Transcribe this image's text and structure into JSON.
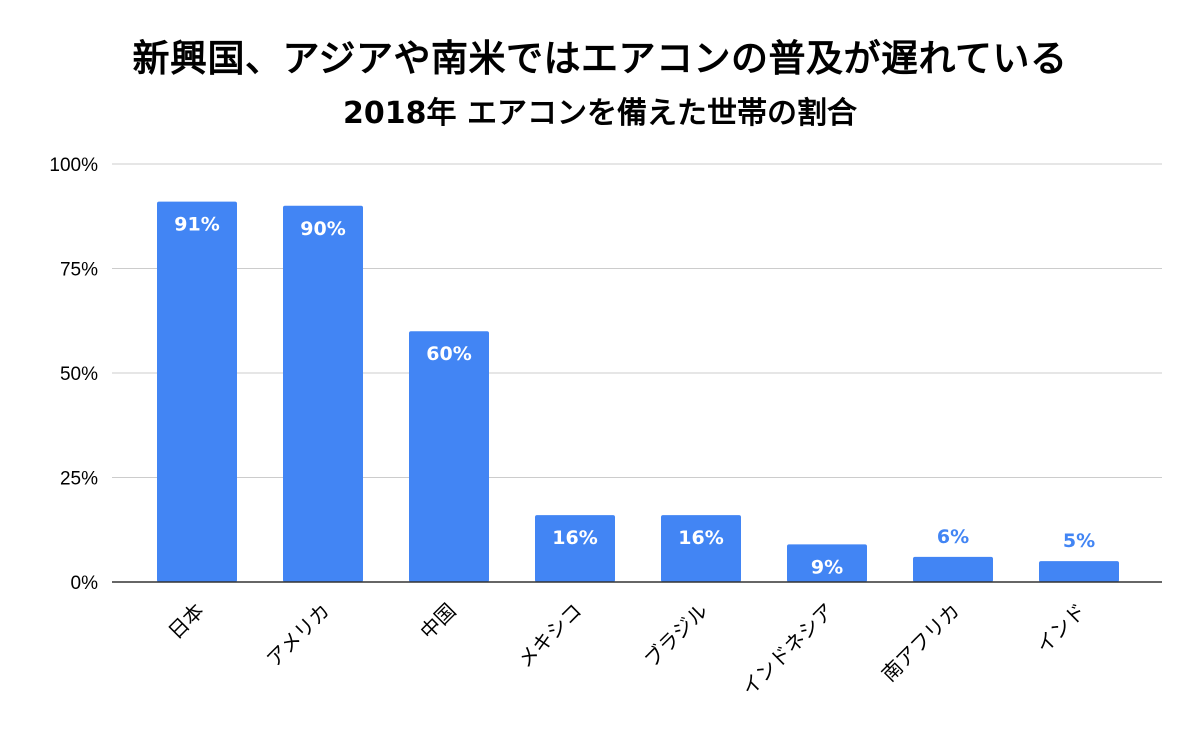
{
  "chart_data": {
    "type": "bar",
    "title": "新興国、アジアや南米ではエアコンの普及が遅れている",
    "subtitle": "2018年 エアコンを備えた世帯の割合",
    "categories": [
      "日本",
      "アメリカ",
      "中国",
      "メキシコ",
      "ブラジル",
      "インドネシア",
      "南アフリカ",
      "インド"
    ],
    "values": [
      91,
      90,
      60,
      16,
      16,
      9,
      6,
      5
    ],
    "data_labels": [
      "91%",
      "90%",
      "60%",
      "16%",
      "16%",
      "9%",
      "6%",
      "5%"
    ],
    "ylim": [
      0,
      100
    ],
    "yticks": [
      0,
      25,
      50,
      75,
      100
    ],
    "ytick_labels": [
      "0%",
      "25%",
      "50%",
      "75%",
      "100%"
    ],
    "xlabel": "",
    "ylabel": "",
    "grid": true,
    "legend": "none",
    "colors": {
      "bar": "#4285f4",
      "label_inside": "#ffffff",
      "label_outside": "#4285f4",
      "grid": "#cccccc",
      "axis": "#333333"
    }
  }
}
